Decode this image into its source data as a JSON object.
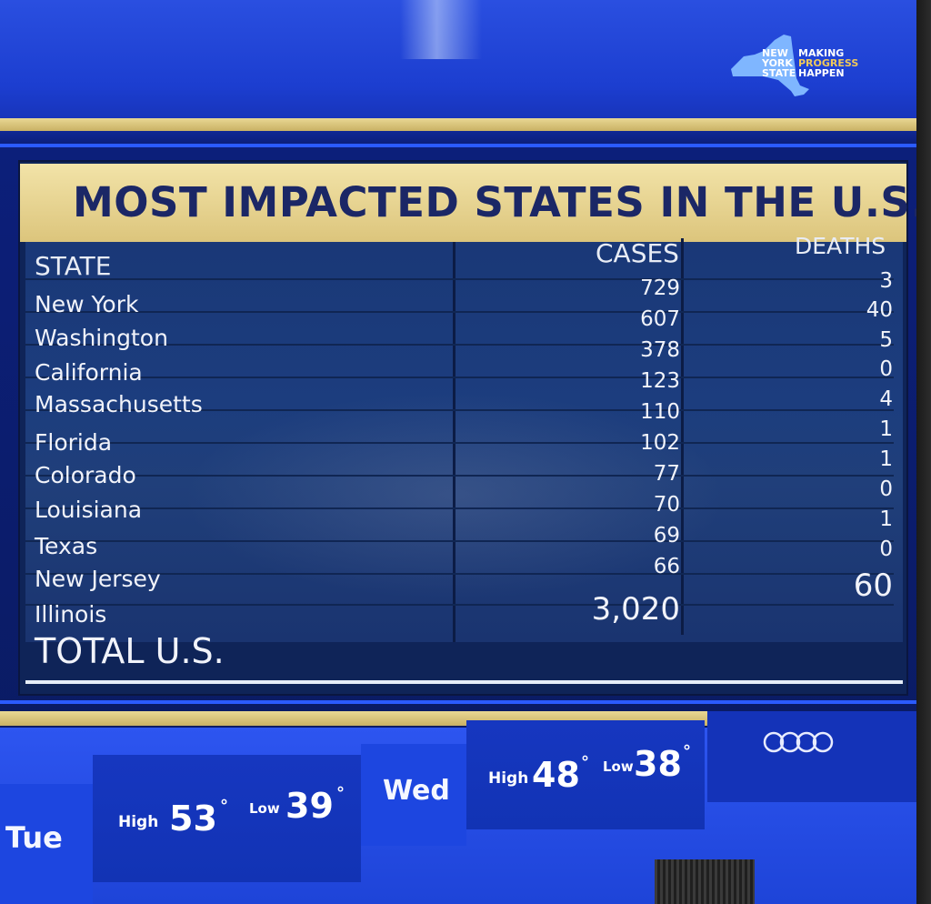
{
  "logo": {
    "state_lines": [
      "NEW",
      "YORK",
      "STATE"
    ],
    "slogan_lines": [
      "MAKING",
      "PROGRESS",
      "HAPPEN"
    ]
  },
  "title": "MOST IMPACTED STATES IN THE U.S.",
  "table": {
    "headers": {
      "state": "STATE",
      "cases": "CASES",
      "deaths": "DEATHS"
    },
    "states": [
      "New York",
      "Washington",
      "California",
      "Massachusetts",
      "Florida",
      "Colorado",
      "Louisiana",
      "Texas",
      "New Jersey",
      "Illinois"
    ],
    "cases": [
      "729",
      "607",
      "378",
      "123",
      "110",
      "102",
      "77",
      "70",
      "69",
      "66"
    ],
    "deaths": [
      "3",
      "40",
      "5",
      "0",
      "4",
      "1",
      "1",
      "0",
      "1",
      "0"
    ],
    "total": {
      "label": "TOTAL U.S.",
      "cases": "3,020",
      "deaths": "60"
    }
  },
  "weather": {
    "tue": {
      "day": "Tue",
      "high_label": "High",
      "high": "53",
      "low_label": "Low",
      "low": "39",
      "deg": "°"
    },
    "wed": {
      "day": "Wed",
      "high_label": "High",
      "high": "48",
      "low_label": "Low",
      "low": "38",
      "deg": "°"
    }
  },
  "colors": {
    "gold": "#e9d793",
    "navy_text": "#1b2766",
    "screen_blue": "#1d3fd6",
    "table_blue": "#1a3877"
  },
  "icons": {
    "logo": "new-york-state-map-icon",
    "sponsor": "four-rings-logo-icon"
  }
}
